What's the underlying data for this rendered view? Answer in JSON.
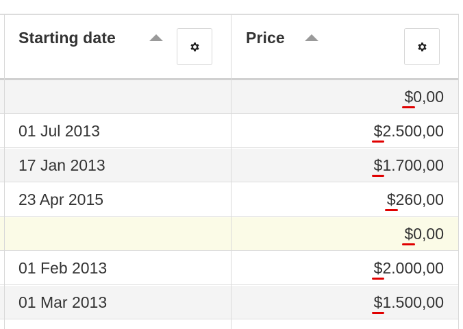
{
  "columns": {
    "date": {
      "title": "Starting date",
      "sort": "ascending"
    },
    "price": {
      "title": "Price",
      "sort": "ascending"
    }
  },
  "rows": [
    {
      "date": "",
      "currency": "$",
      "amount": "0,00",
      "style": "alt"
    },
    {
      "date": "01 Jul 2013",
      "currency": "$",
      "amount": "2.500,00",
      "style": "plain"
    },
    {
      "date": "17 Jan 2013",
      "currency": "$",
      "amount": "1.700,00",
      "style": "alt"
    },
    {
      "date": "23 Apr 2015",
      "currency": "$",
      "amount": "260,00",
      "style": "plain"
    },
    {
      "date": "",
      "currency": "$",
      "amount": "0,00",
      "style": "highlight"
    },
    {
      "date": "01 Feb 2013",
      "currency": "$",
      "amount": "2.000,00",
      "style": "plain"
    },
    {
      "date": "01 Mar 2013",
      "currency": "$",
      "amount": "1.500,00",
      "style": "alt"
    }
  ],
  "colors": {
    "row_alt": "#f4f4f4",
    "row_highlight": "#fbfbe7",
    "spellcheck_underline": "#e00000"
  }
}
